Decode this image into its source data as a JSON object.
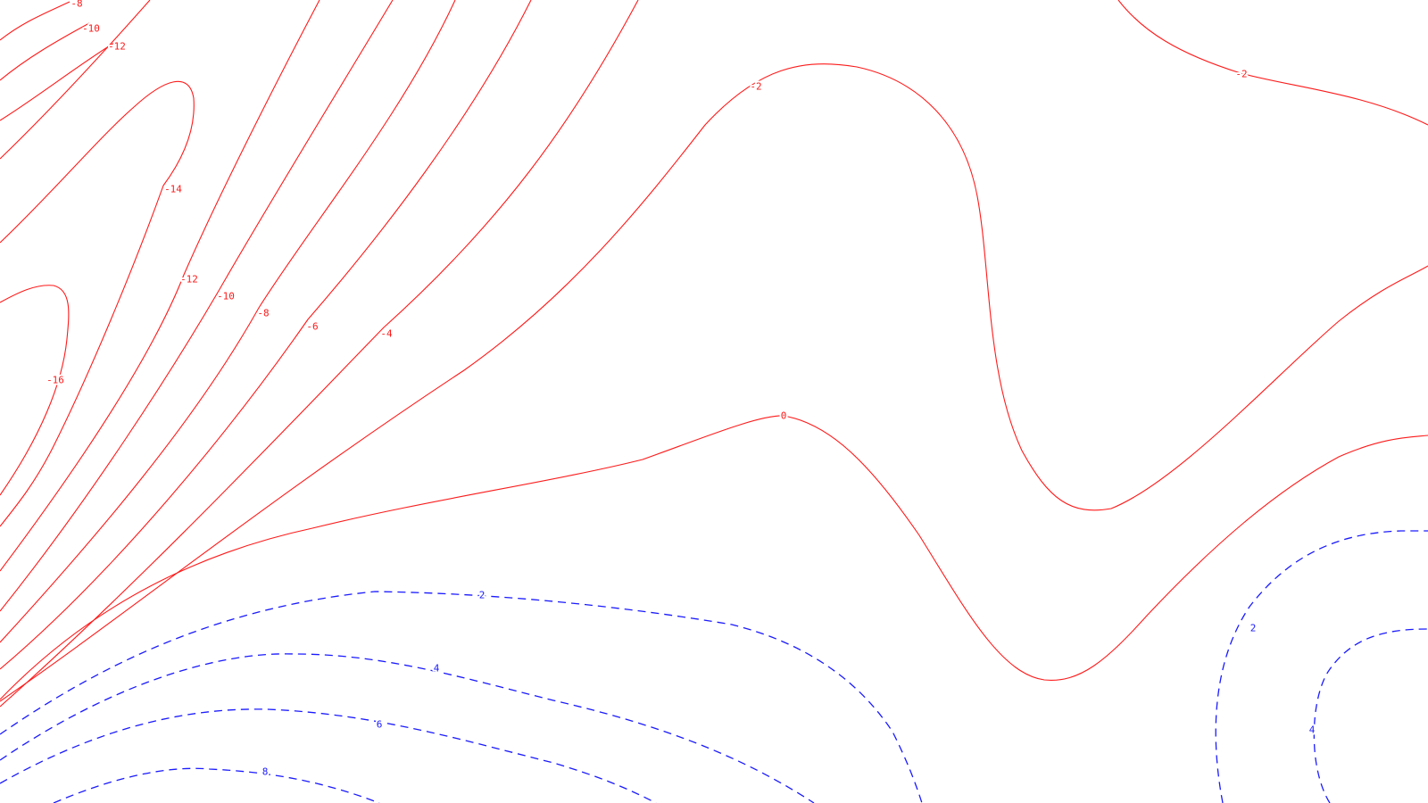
{
  "contour_map": {
    "negative_color": "#ff1a1a",
    "positive_color": "#1a1aff",
    "negative_style": "solid",
    "positive_style": "dashed",
    "labels": {
      "neg_8_top": "-8",
      "neg_10_top": "-10",
      "neg_12_top": "-12",
      "neg_14": "-14",
      "neg_12": "-12",
      "neg_10": "-10",
      "neg_8": "-8",
      "neg_6": "-6",
      "neg_4": "-4",
      "neg_16": "-16",
      "neg_2_center": "-2",
      "neg_2_right": "-2",
      "zero": "0",
      "pos_2_left": "2",
      "pos_4_left": "4",
      "pos_6": "6",
      "pos_8": "8",
      "pos_2_right": "2",
      "pos_4_right": "4"
    }
  }
}
